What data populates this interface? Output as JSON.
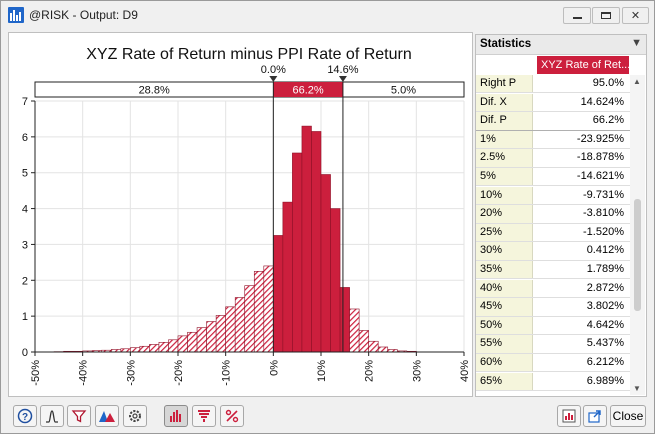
{
  "window": {
    "title": "@RISK - Output: D9"
  },
  "chart_data": {
    "type": "bar",
    "title": "XYZ Rate of Return minus PPI Rate of Return",
    "ylim": [
      0,
      7
    ],
    "yticks": [
      "0",
      "1",
      "2",
      "3",
      "4",
      "5",
      "6",
      "7"
    ],
    "xlim": [
      -50,
      40
    ],
    "xticks": [
      "-50%",
      "-40%",
      "-30%",
      "-20%",
      "-10%",
      "0%",
      "10%",
      "20%",
      "30%",
      "40%"
    ],
    "grid": true,
    "bin_width": 2,
    "bins_start": [
      -46,
      -44,
      -42,
      -40,
      -38,
      -36,
      -34,
      -32,
      -30,
      -28,
      -26,
      -24,
      -22,
      -20,
      -18,
      -16,
      -14,
      -12,
      -10,
      -8,
      -6,
      -4,
      -2,
      0,
      2,
      4,
      6,
      8,
      10,
      12,
      14,
      16,
      18,
      20,
      22,
      24,
      26,
      28
    ],
    "values": [
      0.01,
      0.02,
      0.02,
      0.03,
      0.04,
      0.05,
      0.07,
      0.09,
      0.12,
      0.16,
      0.21,
      0.27,
      0.34,
      0.45,
      0.55,
      0.68,
      0.85,
      1.02,
      1.26,
      1.52,
      1.85,
      2.25,
      2.4,
      3.25,
      4.18,
      5.55,
      6.3,
      6.15,
      4.95,
      4.0,
      1.8,
      1.2,
      0.6,
      0.3,
      0.14,
      0.07,
      0.03,
      0.02
    ],
    "delimiters": {
      "left_label": "0.0%",
      "right_label": "14.6%",
      "left_x": 0.0,
      "right_x": 14.6,
      "left_pct": "28.8%",
      "middle_pct": "66.2%",
      "right_pct": "5.0%"
    },
    "colors": {
      "bar_fill": "#cc1f3d",
      "bar_stroke": "#8e0f26",
      "highlight": "#cc1f3d"
    }
  },
  "stats": {
    "title": "Statistics",
    "column_header": "XYZ Rate of Ret...",
    "rows": [
      {
        "label": "Right P",
        "value": "95.0%"
      },
      {
        "label": "Dif. X",
        "value": "14.624%"
      },
      {
        "label": "Dif. P",
        "value": "66.2%"
      },
      {
        "label": "1%",
        "value": "-23.925%"
      },
      {
        "label": "2.5%",
        "value": "-18.878%"
      },
      {
        "label": "5%",
        "value": "-14.621%"
      },
      {
        "label": "10%",
        "value": "-9.731%"
      },
      {
        "label": "20%",
        "value": "-3.810%"
      },
      {
        "label": "25%",
        "value": "-1.520%"
      },
      {
        "label": "30%",
        "value": "0.412%"
      },
      {
        "label": "35%",
        "value": "1.789%"
      },
      {
        "label": "40%",
        "value": "2.872%"
      },
      {
        "label": "45%",
        "value": "3.802%"
      },
      {
        "label": "50%",
        "value": "4.642%"
      },
      {
        "label": "55%",
        "value": "5.437%"
      },
      {
        "label": "60%",
        "value": "6.212%"
      },
      {
        "label": "65%",
        "value": "6.989%"
      }
    ]
  },
  "footer": {
    "close_label": "Close"
  }
}
